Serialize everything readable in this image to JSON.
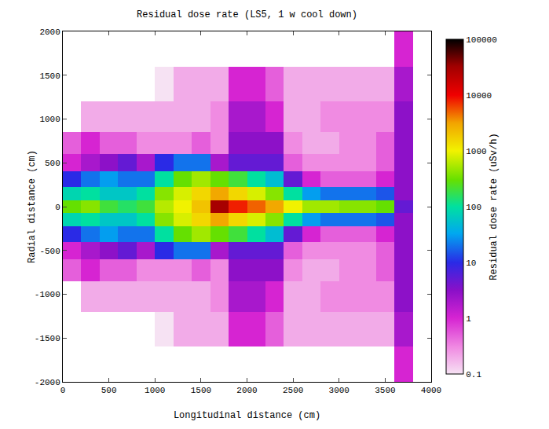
{
  "chart_data": {
    "type": "heatmap",
    "title": "Residual dose rate (LS5, 1 w cool down)",
    "x_label": "Longitudinal distance (cm)",
    "y_label": "Radial distance (cm)",
    "x": [
      100,
      300,
      500,
      700,
      900,
      1100,
      1300,
      1500,
      1700,
      1900,
      2100,
      2300,
      2500,
      2700,
      2900,
      3100,
      3300,
      3500,
      3700
    ],
    "y": [
      -1800,
      -1400,
      -1000,
      -700,
      -500,
      -300,
      -150,
      0,
      150,
      300,
      500,
      700,
      1000,
      1400,
      1800
    ],
    "cells": [
      [
        null,
        null,
        null,
        null,
        null,
        null,
        null,
        null,
        null,
        null,
        null,
        null,
        null,
        null,
        null,
        null,
        null,
        null,
        1
      ],
      [
        null,
        null,
        null,
        null,
        null,
        0.1,
        0.2,
        0.2,
        0.2,
        1,
        1,
        0.5,
        0.2,
        0.2,
        0.2,
        0.2,
        0.2,
        0.2,
        2
      ],
      [
        null,
        0.2,
        0.2,
        0.2,
        0.2,
        0.2,
        0.2,
        0.2,
        0.3,
        2,
        2,
        1,
        0.2,
        0.2,
        0.3,
        0.3,
        0.3,
        0.3,
        3
      ],
      [
        0.5,
        1,
        0.5,
        0.5,
        0.3,
        0.3,
        0.3,
        0.5,
        0.3,
        3,
        3,
        3,
        0.3,
        0.2,
        0.2,
        0.3,
        0.3,
        0.5,
        3
      ],
      [
        1,
        2,
        3,
        5,
        2,
        10,
        20,
        20,
        2,
        5,
        5,
        5,
        0.5,
        0.3,
        0.3,
        0.3,
        0.3,
        0.5,
        3
      ],
      [
        10,
        20,
        30,
        20,
        20,
        100,
        300,
        500,
        300,
        200,
        100,
        50,
        5,
        1,
        0.5,
        0.5,
        0.5,
        1,
        3
      ],
      [
        80,
        100,
        60,
        60,
        100,
        400,
        800,
        1500,
        3000,
        1500,
        800,
        400,
        100,
        30,
        20,
        20,
        20,
        15,
        3
      ],
      [
        300,
        400,
        200,
        150,
        200,
        600,
        1000,
        2000,
        30000,
        8000,
        5000,
        3000,
        1000,
        500,
        500,
        400,
        400,
        300,
        5
      ],
      [
        80,
        100,
        60,
        60,
        100,
        400,
        800,
        1500,
        3000,
        1500,
        800,
        400,
        100,
        30,
        20,
        20,
        20,
        15,
        3
      ],
      [
        10,
        20,
        30,
        20,
        20,
        100,
        300,
        500,
        300,
        200,
        100,
        50,
        5,
        1,
        0.5,
        0.5,
        0.5,
        1,
        3
      ],
      [
        1,
        2,
        3,
        5,
        2,
        10,
        20,
        20,
        2,
        5,
        5,
        5,
        0.5,
        0.3,
        0.3,
        0.3,
        0.3,
        0.5,
        3
      ],
      [
        0.5,
        1,
        0.5,
        0.5,
        0.3,
        0.3,
        0.3,
        0.5,
        0.3,
        3,
        3,
        3,
        0.3,
        0.2,
        0.2,
        0.3,
        0.3,
        0.5,
        3
      ],
      [
        null,
        0.2,
        0.2,
        0.2,
        0.2,
        0.2,
        0.2,
        0.2,
        0.3,
        2,
        2,
        1,
        0.2,
        0.2,
        0.3,
        0.3,
        0.3,
        0.3,
        3
      ],
      [
        null,
        null,
        null,
        null,
        null,
        0.1,
        0.2,
        0.2,
        0.2,
        1,
        1,
        0.5,
        0.2,
        0.2,
        0.2,
        0.2,
        0.2,
        0.2,
        2
      ],
      [
        null,
        null,
        null,
        null,
        null,
        null,
        null,
        null,
        null,
        null,
        null,
        null,
        null,
        null,
        null,
        null,
        null,
        null,
        1
      ]
    ],
    "xlim": [
      0,
      4000
    ],
    "xticks": [
      0,
      500,
      1000,
      1500,
      2000,
      2500,
      3000,
      3500,
      4000
    ],
    "ylim": [
      -2000,
      2000
    ],
    "yticks": [
      -2000,
      -1500,
      -1000,
      -500,
      0,
      500,
      1000,
      1500,
      2000
    ],
    "grid": false,
    "colorbar": {
      "title": "Residual dose rate (uSv/h)",
      "range": [
        0.1,
        100000
      ],
      "ticks": [
        0.1,
        1,
        10,
        100,
        1000,
        10000,
        100000
      ],
      "log": true
    }
  }
}
